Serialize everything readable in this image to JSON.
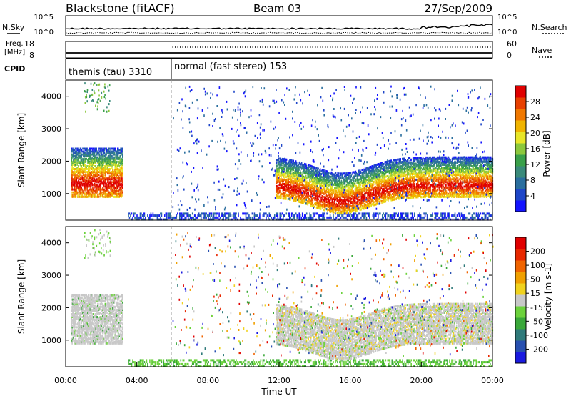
{
  "header": {
    "station": "Blackstone (fitACF)",
    "beam": "Beam 03",
    "date": "27/Sep/2009"
  },
  "colors": {
    "power_scale": [
      "#1414ff",
      "#1e46c8",
      "#2a6e9e",
      "#3a8a7a",
      "#3aa04a",
      "#8cc83c",
      "#e8e628",
      "#f0b400",
      "#f07800",
      "#e84000",
      "#e00000"
    ],
    "velocity_scale": [
      "#1a1ae0",
      "#2850b0",
      "#2f7a7a",
      "#3aa83a",
      "#6cd23c",
      "#c8c8c8",
      "#f0d21e",
      "#f0a000",
      "#f06400",
      "#e82800",
      "#e00000"
    ]
  },
  "chart_data": [
    {
      "type": "line",
      "panel": "N.Sky / N.Search",
      "left_label": "N.Sky",
      "right_label": "N.Search",
      "y_left_ticks": [
        "10^5",
        "10^0"
      ],
      "y_right_ticks": [
        "10^5",
        "10^0"
      ],
      "series": [
        {
          "name": "N.Sky",
          "style": "solid"
        },
        {
          "name": "N.Search",
          "style": "dotted"
        }
      ]
    },
    {
      "type": "line",
      "panel": "Freq / Nave",
      "left_label_lines": [
        "Freq.",
        "[MHz]"
      ],
      "right_label": "Nave",
      "y_left_ticks": [
        "18",
        "8"
      ],
      "y_right_ticks": [
        "60",
        "0"
      ],
      "series": [
        {
          "name": "Freq.",
          "style": "solid",
          "values_mhz": [
            10,
            10
          ]
        },
        {
          "name": "Nave",
          "style": "dotted",
          "start_hours": 6,
          "values": [
            14,
            14
          ]
        }
      ]
    },
    {
      "type": "table",
      "panel": "CPID",
      "label": "CPID",
      "segments": [
        {
          "label": "themis (tau) 3310",
          "start_hours": 0,
          "end_hours": 6
        },
        {
          "label": "normal (fast stereo) 153",
          "start_hours": 6,
          "end_hours": 24
        }
      ]
    },
    {
      "type": "heatmap",
      "panel": "Power",
      "ylabel": "Slant Range [km]",
      "colorbar_label": "Power [dB]",
      "colorbar_ticks": [
        "4",
        "8",
        "12",
        "16",
        "20",
        "24",
        "28"
      ],
      "y_ticks": [
        1000,
        2000,
        3000,
        4000
      ],
      "ylim": [
        180,
        4500
      ],
      "xlim_hours": [
        0,
        24
      ],
      "features": [
        {
          "name": "themis band",
          "hours": [
            0.3,
            3.2
          ],
          "range_km": [
            900,
            2400
          ],
          "peak_db": 28
        },
        {
          "name": "afternoon band",
          "hours": [
            11.8,
            24
          ],
          "range_km": [
            700,
            2200
          ],
          "peak_db": 28
        },
        {
          "name": "near range",
          "hours": [
            3.5,
            24
          ],
          "range_km": [
            180,
            450
          ],
          "peak_db": 8
        }
      ]
    },
    {
      "type": "heatmap",
      "panel": "Velocity",
      "ylabel": "Slant Range [km]",
      "colorbar_label": "Velocity [m s-1]",
      "colorbar_ticks": [
        "200",
        "100",
        "50",
        "15",
        "-15",
        "-50",
        "-100",
        "-200"
      ],
      "y_ticks": [
        1000,
        2000,
        3000,
        4000
      ],
      "ylim": [
        180,
        4500
      ],
      "xlim_hours": [
        0,
        24
      ],
      "x_ticks": [
        "00:00",
        "04:00",
        "08:00",
        "12:00",
        "16:00",
        "20:00",
        "00:00"
      ],
      "xlabel": "Time UT"
    }
  ]
}
